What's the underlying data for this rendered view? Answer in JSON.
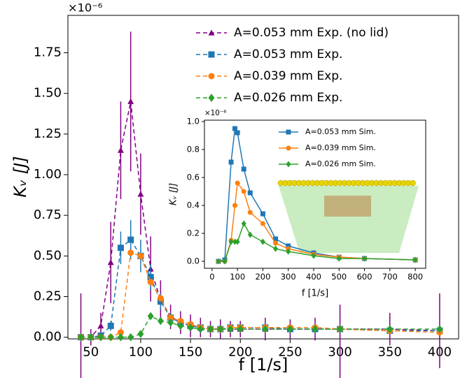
{
  "chart_data": [
    {
      "type": "line",
      "xlabel": "f [1/s]",
      "ylabel": "Kᵥ [J]",
      "offset_text": "×10⁻⁶",
      "legend": "upper right",
      "line_style": "dashed",
      "grid": false,
      "x": [
        40,
        50,
        60,
        70,
        80,
        90,
        100,
        110,
        120,
        130,
        140,
        150,
        160,
        170,
        180,
        190,
        200,
        225,
        250,
        275,
        300,
        350,
        400
      ],
      "xlim": [
        27,
        419
      ],
      "xticks": [
        50,
        100,
        150,
        200,
        250,
        300,
        350,
        400
      ],
      "ylim": [
        -0.01,
        1.98
      ],
      "yticks": [
        {
          "value": 0,
          "label": "0.00"
        },
        0.25,
        {
          "value": 0.5,
          "label": "0.50"
        },
        0.75,
        {
          "value": 1,
          "label": "1.00"
        },
        1.25,
        {
          "value": 1.5,
          "label": "1.50"
        },
        1.75
      ],
      "series": [
        {
          "name": "A=0.053 mm Exp. (no lid)",
          "color": "#800080",
          "marker": "triangle",
          "values": [
            0,
            0,
            0.07,
            0.46,
            1.15,
            1.45,
            0.88,
            0.42,
            0.23,
            0.13,
            0.09,
            0.07,
            0.06,
            0.05,
            0.05,
            0.05,
            0.05,
            0.05,
            0.05,
            0.05,
            0.05,
            0.05,
            0.04
          ],
          "errors": [
            0.27,
            0.05,
            0.08,
            0.25,
            0.3,
            0.43,
            0.25,
            0.2,
            0.12,
            0.08,
            0.07,
            0.07,
            0.06,
            0.05,
            0.06,
            0.05,
            0.05,
            0.07,
            0.06,
            0.07,
            0.35,
            0.1,
            0.23
          ]
        },
        {
          "name": "A=0.053 mm Exp.",
          "color": "#1f77b4",
          "marker": "square",
          "values": [
            0,
            0,
            0.01,
            0.07,
            0.55,
            0.6,
            0.5,
            0.37,
            0.22,
            0.12,
            0.09,
            0.07,
            0.06,
            0.05,
            0.05,
            0.06,
            0.06,
            0.06,
            0.05,
            0.05,
            0.05,
            0.04,
            0.04
          ],
          "errors": [
            0,
            0,
            0.01,
            0.03,
            0.1,
            0.12,
            0.1,
            0.08,
            0.05,
            0.03,
            0.02,
            0.02,
            0.02,
            0.02,
            0.02,
            0.02,
            0.02,
            0.02,
            0.02,
            0.02,
            0.02,
            0.02,
            0.02
          ]
        },
        {
          "name": "A=0.039 mm Exp.",
          "color": "#ff7f0e",
          "marker": "circle",
          "values": [
            0,
            0,
            0,
            0,
            0.03,
            0.52,
            0.5,
            0.34,
            0.24,
            0.12,
            0.1,
            0.08,
            0.06,
            0.05,
            0.05,
            0.06,
            0.06,
            0.06,
            0.06,
            0.06,
            0.05,
            0.04,
            0.03
          ]
        },
        {
          "name": "A=0.026 mm Exp.",
          "color": "#2ca02c",
          "marker": "diamond",
          "values": [
            0,
            0,
            0,
            0,
            0,
            0,
            0.02,
            0.13,
            0.1,
            0.09,
            0.07,
            0.06,
            0.05,
            0.05,
            0.05,
            0.05,
            0.05,
            0.05,
            0.05,
            0.05,
            0.05,
            0.05,
            0.05
          ]
        }
      ]
    },
    {
      "type": "line",
      "xlabel": "f [1/s]",
      "ylabel": "Kᵥ [J]",
      "offset_text": "×10⁻⁶",
      "legend": "upper right",
      "line_style": "solid",
      "grid": false,
      "x": [
        25,
        50,
        75,
        90,
        100,
        125,
        150,
        200,
        250,
        300,
        400,
        500,
        600,
        800
      ],
      "xlim": [
        -30,
        841
      ],
      "xticks": [
        0,
        100,
        200,
        300,
        400,
        500,
        600,
        700,
        800
      ],
      "ylim": [
        -0.05,
        1.01
      ],
      "yticks": [
        {
          "value": 0,
          "label": "0.0"
        },
        0.2,
        0.4,
        0.6,
        0.8,
        {
          "value": 1,
          "label": "1.0"
        }
      ],
      "series": [
        {
          "name": "A=0.053 mm Sim.",
          "color": "#1f77b4",
          "marker": "square",
          "values": [
            0,
            0.01,
            0.71,
            0.95,
            0.92,
            0.66,
            0.49,
            0.34,
            0.16,
            0.11,
            0.06,
            0.03,
            0.02,
            0.01
          ]
        },
        {
          "name": "A=0.039 mm Sim.",
          "color": "#ff7f0e",
          "marker": "circle",
          "values": [
            0,
            0,
            0.15,
            0.4,
            0.56,
            0.5,
            0.35,
            0.27,
            0.13,
            0.09,
            0.05,
            0.03,
            0.02,
            0.01
          ]
        },
        {
          "name": "A=0.026 mm Sim.",
          "color": "#2ca02c",
          "marker": "diamond",
          "values": [
            0,
            0,
            0.14,
            0.14,
            0.14,
            0.27,
            0.19,
            0.14,
            0.09,
            0.07,
            0.04,
            0.02,
            0.02,
            0.01
          ]
        }
      ]
    }
  ]
}
